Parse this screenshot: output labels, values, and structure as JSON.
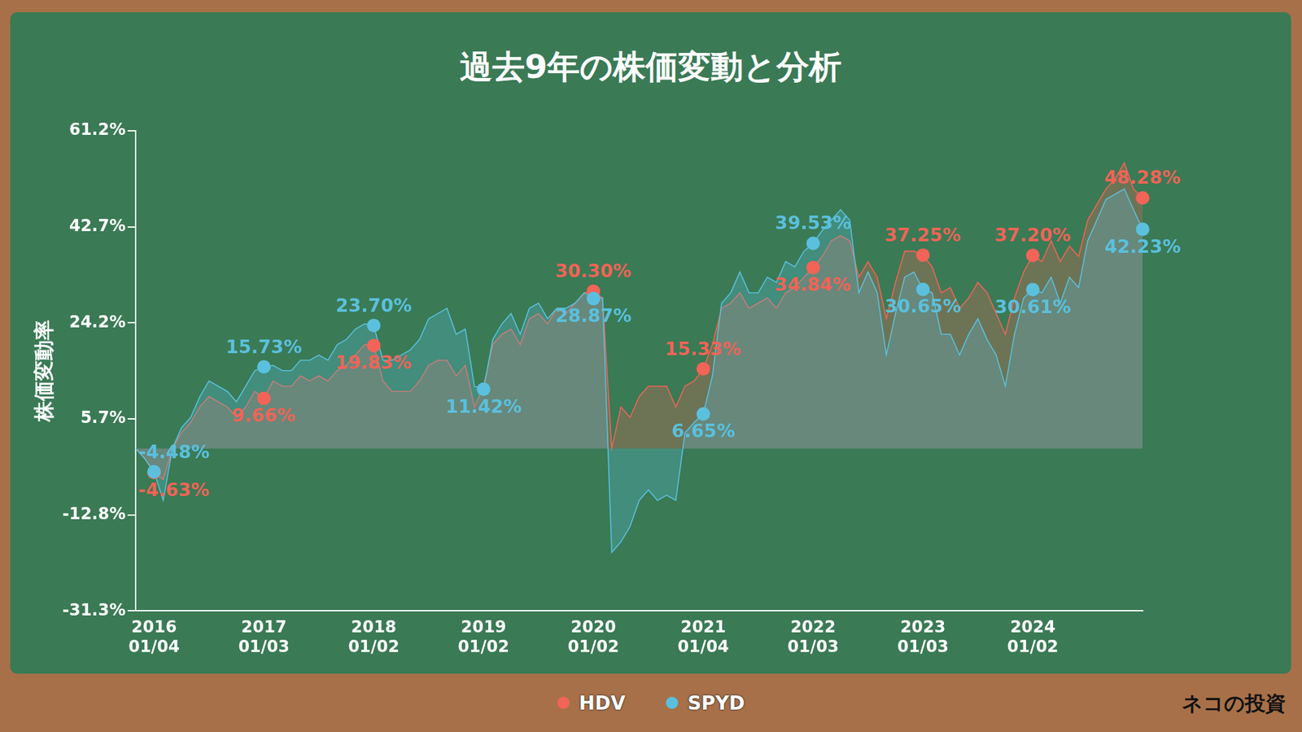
{
  "chart_data": {
    "type": "line",
    "title": "過去9年の株価変動と分析",
    "y_label": "株価変動率",
    "categories": [
      null,
      null,
      "2016\n01/04",
      null,
      null,
      null,
      null,
      null,
      null,
      null,
      null,
      null,
      null,
      null,
      "2017\n01/03",
      null,
      null,
      null,
      null,
      null,
      null,
      null,
      null,
      null,
      null,
      null,
      "2018\n01/02",
      null,
      null,
      null,
      null,
      null,
      null,
      null,
      null,
      null,
      null,
      null,
      "2019\n01/02",
      null,
      null,
      null,
      null,
      null,
      null,
      null,
      null,
      null,
      null,
      null,
      "2020\n01/02",
      null,
      null,
      null,
      null,
      null,
      null,
      null,
      null,
      null,
      null,
      null,
      "2021\n01/04",
      null,
      null,
      null,
      null,
      null,
      null,
      null,
      null,
      null,
      null,
      null,
      "2022\n01/03",
      null,
      null,
      null,
      null,
      null,
      null,
      null,
      null,
      null,
      null,
      null,
      "2023\n01/03",
      null,
      null,
      null,
      null,
      null,
      null,
      null,
      null,
      null,
      null,
      null,
      "2024\n01/02",
      null,
      null,
      null,
      null,
      null,
      null,
      null,
      null,
      null,
      null,
      null,
      null
    ],
    "series": [
      {
        "name": "HDV",
        "color": "#f26457",
        "values": [
          0,
          -2,
          -4.63,
          -6,
          0,
          3,
          5,
          8,
          10,
          9,
          8,
          6,
          8,
          11,
          9.66,
          13,
          12,
          12,
          14,
          13,
          14,
          13,
          15,
          16,
          18,
          20,
          19.83,
          13,
          11,
          11,
          11,
          13,
          16,
          17,
          17,
          14,
          16,
          8,
          12,
          20,
          22,
          23,
          20,
          25,
          26,
          24,
          27,
          26,
          28,
          30,
          30.3,
          29,
          0,
          8,
          6,
          10,
          12,
          12,
          12,
          8,
          12,
          13,
          15.33,
          20,
          27,
          28,
          30,
          27,
          28,
          29,
          27,
          30,
          31,
          33,
          34.84,
          37,
          40,
          41,
          40,
          33,
          36,
          33,
          25,
          32,
          38,
          38,
          37.25,
          35,
          30,
          31,
          27,
          29,
          32,
          30,
          26,
          22,
          29,
          34,
          37.2,
          36,
          40,
          36,
          39,
          37,
          44,
          47,
          50,
          52,
          55,
          50,
          48.28
        ],
        "value_labels": [
          null,
          null,
          "-4.63%",
          null,
          null,
          null,
          null,
          null,
          null,
          null,
          null,
          null,
          null,
          null,
          "9.66%",
          null,
          null,
          null,
          null,
          null,
          null,
          null,
          null,
          null,
          null,
          null,
          "19.83%",
          null,
          null,
          null,
          null,
          null,
          null,
          null,
          null,
          null,
          null,
          null,
          null,
          null,
          null,
          null,
          null,
          null,
          null,
          null,
          null,
          null,
          null,
          null,
          "30.30%",
          null,
          null,
          null,
          null,
          null,
          null,
          null,
          null,
          null,
          null,
          null,
          "15.33%",
          null,
          null,
          null,
          null,
          null,
          null,
          null,
          null,
          null,
          null,
          null,
          "34.84%",
          null,
          null,
          null,
          null,
          null,
          null,
          null,
          null,
          null,
          null,
          null,
          "37.25%",
          null,
          null,
          null,
          null,
          null,
          null,
          null,
          null,
          null,
          null,
          null,
          "37.20%",
          null,
          null,
          null,
          null,
          null,
          null,
          null,
          null,
          null,
          null,
          null,
          "48.28%"
        ]
      },
      {
        "name": "SPYD",
        "color": "#5bc0de",
        "values": [
          0,
          -2,
          -4.48,
          -10,
          0,
          4,
          6,
          10,
          13,
          12,
          11,
          9,
          12,
          15,
          15.73,
          16,
          15,
          15,
          17,
          17,
          18,
          17,
          20,
          21,
          23,
          24,
          23.7,
          17,
          17,
          18,
          19,
          21,
          25,
          26,
          27,
          22,
          23,
          12,
          11.42,
          21,
          24,
          26,
          22,
          27,
          28,
          25,
          27,
          27,
          28,
          30,
          28.87,
          29,
          -20,
          -18,
          -15,
          -10,
          -8,
          -10,
          -9,
          -10,
          3,
          5,
          6.65,
          14,
          28,
          30,
          34,
          30,
          30,
          33,
          32,
          36,
          35,
          38,
          39.53,
          42,
          44,
          46,
          44,
          30,
          34,
          30,
          18,
          26,
          33,
          34,
          30.65,
          30,
          22,
          22,
          18,
          22,
          25,
          21,
          18,
          12,
          22,
          29,
          30.61,
          30,
          33,
          28,
          33,
          31,
          40,
          44,
          48,
          49,
          50,
          46,
          42.23
        ],
        "value_labels": [
          null,
          null,
          "-4.48%",
          null,
          null,
          null,
          null,
          null,
          null,
          null,
          null,
          null,
          null,
          null,
          "15.73%",
          null,
          null,
          null,
          null,
          null,
          null,
          null,
          null,
          null,
          null,
          null,
          "23.70%",
          null,
          null,
          null,
          null,
          null,
          null,
          null,
          null,
          null,
          null,
          null,
          "11.42%",
          null,
          null,
          null,
          null,
          null,
          null,
          null,
          null,
          null,
          null,
          null,
          "28.87%",
          null,
          null,
          null,
          null,
          null,
          null,
          null,
          null,
          null,
          null,
          null,
          "6.65%",
          null,
          null,
          null,
          null,
          null,
          null,
          null,
          null,
          null,
          null,
          null,
          "39.53%",
          null,
          null,
          null,
          null,
          null,
          null,
          null,
          null,
          null,
          null,
          null,
          "30.65%",
          null,
          null,
          null,
          null,
          null,
          null,
          null,
          null,
          null,
          null,
          null,
          "30.61%",
          null,
          null,
          null,
          null,
          null,
          null,
          null,
          null,
          null,
          null,
          null,
          "42.23%"
        ]
      }
    ],
    "ylim": [
      -31.3,
      61.2
    ],
    "yticks": [
      {
        "value": -31.3,
        "label": "-31.3%"
      },
      {
        "value": -12.8,
        "label": "-12.8%"
      },
      {
        "value": 5.7,
        "label": "5.7%"
      },
      {
        "value": 24.2,
        "label": "24.2%"
      },
      {
        "value": 42.7,
        "label": "42.7%"
      },
      {
        "value": 61.2,
        "label": "61.2%"
      }
    ],
    "grid": false,
    "legend": "bottom",
    "data_labels": true,
    "annotations": [
      "ネコの投資"
    ]
  }
}
